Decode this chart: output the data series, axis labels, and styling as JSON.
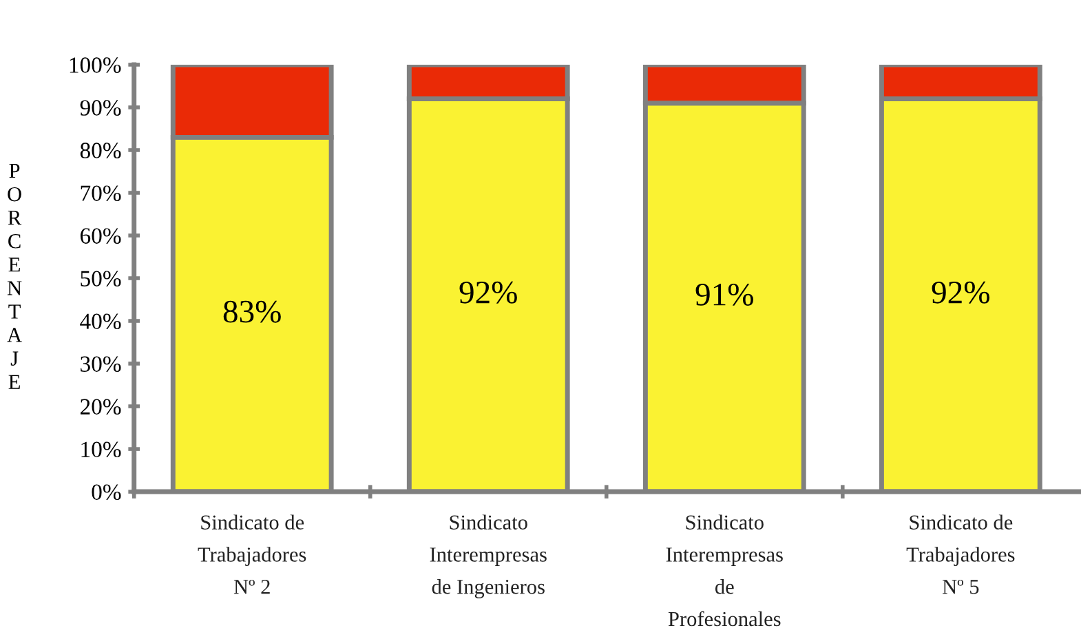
{
  "chart_data": {
    "type": "bar",
    "stacked": true,
    "ylabel": "PORCENTAJE",
    "categories": [
      "Sindicato de\nTrabajadores\nNº 2",
      "Sindicato\nInterempresas\nde Ingenieros",
      "Sindicato\nInterempresas\nde\nProfesionales",
      "Sindicato de\nTrabajadores\nNº 5"
    ],
    "series": [
      {
        "color": "#faf232",
        "values": [
          83,
          92,
          91,
          92
        ],
        "value_labels": [
          "83%",
          "92%",
          "91%",
          "92%"
        ]
      },
      {
        "color": "#ea2a06",
        "values": [
          17,
          8,
          9,
          8
        ]
      }
    ],
    "ylim": [
      0,
      100
    ],
    "yticks": [
      {
        "value": 0,
        "label": "0%"
      },
      {
        "value": 10,
        "label": "10%"
      },
      {
        "value": 20,
        "label": "20%"
      },
      {
        "value": 30,
        "label": "30%"
      },
      {
        "value": 40,
        "label": "40%"
      },
      {
        "value": 50,
        "label": "50%"
      },
      {
        "value": 60,
        "label": "60%"
      },
      {
        "value": 70,
        "label": "70%"
      },
      {
        "value": 80,
        "label": "80%"
      },
      {
        "value": 90,
        "label": "90%"
      },
      {
        "value": 100,
        "label": "100%"
      }
    ],
    "grid": false,
    "legend": false
  }
}
